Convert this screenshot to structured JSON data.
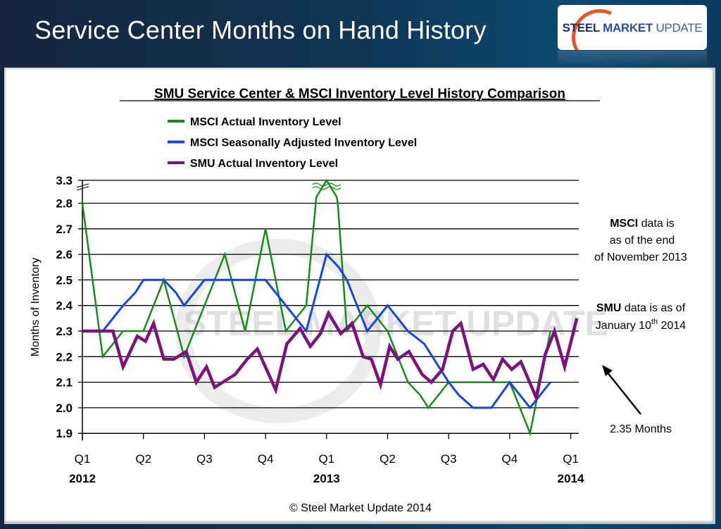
{
  "header": {
    "title": "Service Center Months on Hand History",
    "logo": {
      "bold": "STEEL",
      "mid": "MARKET",
      "light": "UPDATE"
    }
  },
  "watermark": "STEEL MARKET UPDATE",
  "copyright": "© Steel Market Update 2014",
  "annotations": {
    "msci_note": [
      "MSCI data is",
      "as of the end",
      "of November 2013"
    ],
    "msci_note_bold": "MSCI",
    "smu_note_line1_bold": "SMU",
    "smu_note_line1_rest": " data is as of",
    "smu_note_line2": "January 10",
    "smu_note_sup": "th",
    "smu_note_year": " 2014",
    "arrow_label": "2.35 Months"
  },
  "chart_data": {
    "type": "line",
    "title": "SMU Service Center & MSCI Inventory Level History Comparison",
    "xlabel": "",
    "ylabel": "Months of Inventory",
    "x_unit": "months since Jan 2012",
    "xlim": [
      0,
      24.3
    ],
    "ylim": [
      1.9,
      2.8
    ],
    "y_break_top_label": "3.3",
    "y_ticks": [
      "1.9",
      "2.0",
      "2.1",
      "2.2",
      "2.3",
      "2.4",
      "2.5",
      "2.6",
      "2.7",
      "2.8"
    ],
    "grid": true,
    "legend_position": "top",
    "x_ticks": [
      {
        "x": 0,
        "quarter": "Q1",
        "year": "2012"
      },
      {
        "x": 3,
        "quarter": "Q2",
        "year": ""
      },
      {
        "x": 6,
        "quarter": "Q3",
        "year": ""
      },
      {
        "x": 9,
        "quarter": "Q4",
        "year": ""
      },
      {
        "x": 12,
        "quarter": "Q1",
        "year": "2013"
      },
      {
        "x": 15,
        "quarter": "Q2",
        "year": ""
      },
      {
        "x": 18,
        "quarter": "Q3",
        "year": ""
      },
      {
        "x": 21,
        "quarter": "Q4",
        "year": ""
      },
      {
        "x": 24,
        "quarter": "Q1",
        "year": "2014"
      }
    ],
    "series": [
      {
        "name": "MSCI Actual Inventory Level",
        "color": "#1a8a1a",
        "width": 2.5,
        "points": [
          [
            0,
            2.8
          ],
          [
            1,
            2.2
          ],
          [
            2,
            2.3
          ],
          [
            3,
            2.3
          ],
          [
            4,
            2.5
          ],
          [
            5,
            2.2
          ],
          [
            6,
            2.4
          ],
          [
            7,
            2.6
          ],
          [
            8,
            2.3
          ],
          [
            9,
            2.7
          ],
          [
            10,
            2.3
          ],
          [
            11,
            2.4
          ],
          [
            11.5,
            2.94
          ],
          [
            12,
            3.3
          ],
          [
            12.5,
            2.94
          ],
          [
            12.55,
            2.8
          ],
          [
            13,
            2.3
          ],
          [
            14,
            2.4
          ],
          [
            15,
            2.3
          ],
          [
            16,
            2.1
          ],
          [
            16.6,
            2.05
          ],
          [
            17,
            2.0
          ],
          [
            17.5,
            2.05
          ],
          [
            18,
            2.1
          ],
          [
            18.5,
            2.1
          ],
          [
            21,
            2.1
          ],
          [
            21.5,
            2.0
          ],
          [
            22,
            1.9
          ],
          [
            23,
            2.3
          ]
        ]
      },
      {
        "name": "MSCI Seasonally Adjusted Inventory Level",
        "color": "#1645e0",
        "width": 3,
        "points": [
          [
            0,
            2.3
          ],
          [
            1,
            2.3
          ],
          [
            2,
            2.4
          ],
          [
            2.6,
            2.45
          ],
          [
            3,
            2.5
          ],
          [
            4,
            2.5
          ],
          [
            4.6,
            2.45
          ],
          [
            5,
            2.4
          ],
          [
            6,
            2.5
          ],
          [
            9,
            2.5
          ],
          [
            10,
            2.4
          ],
          [
            11,
            2.3
          ],
          [
            12,
            2.6
          ],
          [
            12.6,
            2.55
          ],
          [
            13,
            2.5
          ],
          [
            14,
            2.3
          ],
          [
            15,
            2.4
          ],
          [
            16,
            2.3
          ],
          [
            16.8,
            2.25
          ],
          [
            18,
            2.1
          ],
          [
            18.5,
            2.05
          ],
          [
            19.2,
            2.0
          ],
          [
            20.1,
            2.0
          ],
          [
            21,
            2.1
          ],
          [
            21.5,
            2.05
          ],
          [
            22,
            2.0
          ],
          [
            23,
            2.1
          ]
        ]
      },
      {
        "name": "SMU Actual Inventory Level",
        "color": "#7a137e",
        "width": 4.5,
        "points": [
          [
            0,
            2.3
          ],
          [
            1.5,
            2.3
          ],
          [
            2,
            2.16
          ],
          [
            2.7,
            2.28
          ],
          [
            3.1,
            2.26
          ],
          [
            3.5,
            2.33
          ],
          [
            4,
            2.19
          ],
          [
            4.5,
            2.19
          ],
          [
            5.1,
            2.22
          ],
          [
            5.6,
            2.1
          ],
          [
            6.1,
            2.16
          ],
          [
            6.5,
            2.08
          ],
          [
            7.1,
            2.11
          ],
          [
            7.5,
            2.13
          ],
          [
            8.1,
            2.19
          ],
          [
            8.6,
            2.23
          ],
          [
            9.5,
            2.07
          ],
          [
            10.05,
            2.25
          ],
          [
            10.7,
            2.31
          ],
          [
            11.2,
            2.24
          ],
          [
            11.7,
            2.29
          ],
          [
            12.1,
            2.37
          ],
          [
            12.7,
            2.29
          ],
          [
            13.25,
            2.33
          ],
          [
            13.8,
            2.2
          ],
          [
            14.2,
            2.19
          ],
          [
            14.65,
            2.09
          ],
          [
            15.1,
            2.24
          ],
          [
            15.5,
            2.19
          ],
          [
            16.05,
            2.22
          ],
          [
            16.7,
            2.13
          ],
          [
            17.15,
            2.1
          ],
          [
            17.7,
            2.15
          ],
          [
            18.2,
            2.3
          ],
          [
            18.6,
            2.33
          ],
          [
            19.2,
            2.15
          ],
          [
            19.7,
            2.17
          ],
          [
            20.2,
            2.11
          ],
          [
            20.65,
            2.19
          ],
          [
            21.1,
            2.15
          ],
          [
            21.55,
            2.18
          ],
          [
            22.3,
            2.04
          ],
          [
            22.75,
            2.21
          ],
          [
            23.2,
            2.3
          ],
          [
            23.7,
            2.16
          ],
          [
            24.3,
            2.35
          ]
        ]
      }
    ]
  }
}
